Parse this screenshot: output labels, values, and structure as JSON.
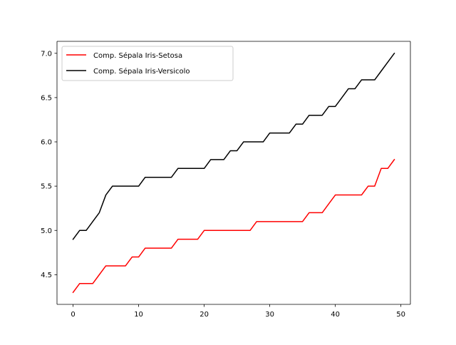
{
  "chart_data": {
    "type": "line",
    "title": "",
    "xlabel": "",
    "ylabel": "",
    "xlim": [
      -2.45,
      51.45
    ],
    "ylim": [
      4.165,
      7.135
    ],
    "xticks": [
      0,
      10,
      20,
      30,
      40,
      50
    ],
    "xtick_labels": [
      "0",
      "10",
      "20",
      "30",
      "40",
      "50"
    ],
    "yticks": [
      4.5,
      5.0,
      5.5,
      6.0,
      6.5,
      7.0
    ],
    "ytick_labels": [
      "4.5",
      "5.0",
      "5.5",
      "6.0",
      "6.5",
      "7.0"
    ],
    "grid": false,
    "legend_position": "upper-left",
    "x": [
      0,
      1,
      2,
      3,
      4,
      5,
      6,
      7,
      8,
      9,
      10,
      11,
      12,
      13,
      14,
      15,
      16,
      17,
      18,
      19,
      20,
      21,
      22,
      23,
      24,
      25,
      26,
      27,
      28,
      29,
      30,
      31,
      32,
      33,
      34,
      35,
      36,
      37,
      38,
      39,
      40,
      41,
      42,
      43,
      44,
      45,
      46,
      47,
      48,
      49
    ],
    "series": [
      {
        "name": "Comp. Sépala Iris-Setosa",
        "color": "#ff0000",
        "values": [
          4.3,
          4.4,
          4.4,
          4.4,
          4.5,
          4.6,
          4.6,
          4.6,
          4.6,
          4.7,
          4.7,
          4.8,
          4.8,
          4.8,
          4.8,
          4.8,
          4.9,
          4.9,
          4.9,
          4.9,
          5.0,
          5.0,
          5.0,
          5.0,
          5.0,
          5.0,
          5.0,
          5.0,
          5.1,
          5.1,
          5.1,
          5.1,
          5.1,
          5.1,
          5.1,
          5.1,
          5.2,
          5.2,
          5.2,
          5.3,
          5.4,
          5.4,
          5.4,
          5.4,
          5.4,
          5.5,
          5.5,
          5.7,
          5.7,
          5.8
        ]
      },
      {
        "name": "Comp. Sépala Iris-Versicolo",
        "color": "#000000",
        "values": [
          4.9,
          5.0,
          5.0,
          5.1,
          5.2,
          5.4,
          5.5,
          5.5,
          5.5,
          5.5,
          5.5,
          5.6,
          5.6,
          5.6,
          5.6,
          5.6,
          5.7,
          5.7,
          5.7,
          5.7,
          5.7,
          5.8,
          5.8,
          5.8,
          5.9,
          5.9,
          6.0,
          6.0,
          6.0,
          6.0,
          6.1,
          6.1,
          6.1,
          6.1,
          6.2,
          6.2,
          6.3,
          6.3,
          6.3,
          6.4,
          6.4,
          6.5,
          6.6,
          6.6,
          6.7,
          6.7,
          6.7,
          6.8,
          6.9,
          7.0
        ]
      }
    ]
  }
}
